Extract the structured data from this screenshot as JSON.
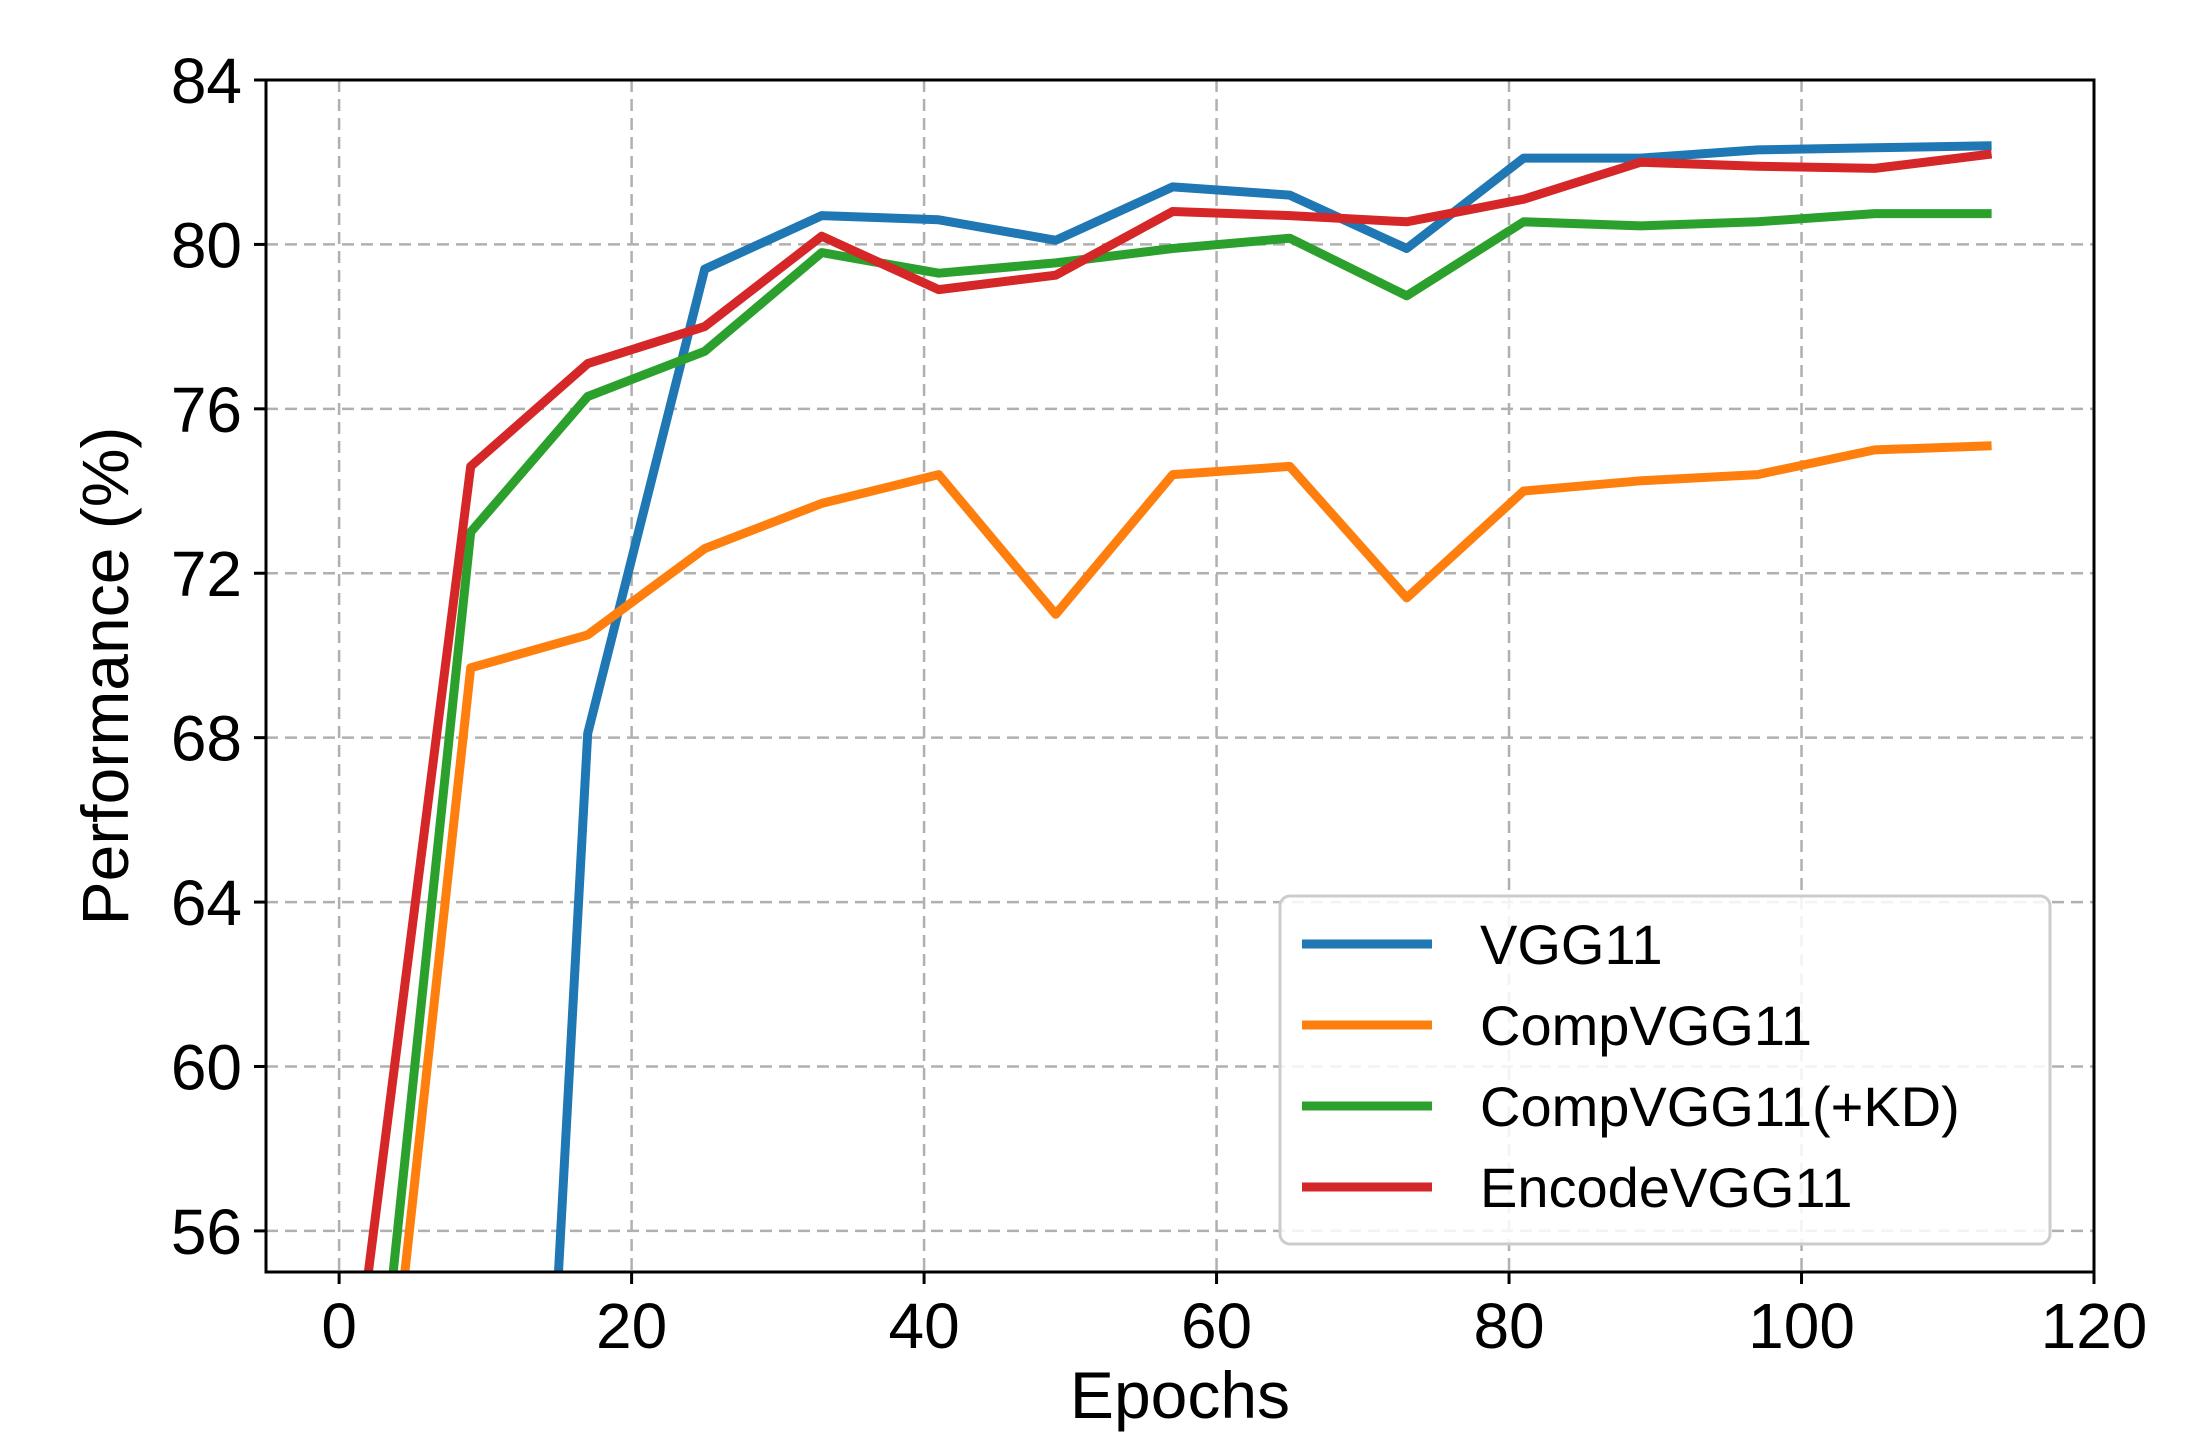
{
  "chart_data": {
    "type": "line",
    "xlabel": "Epochs",
    "ylabel": "Performance (%)",
    "xlim": [
      -5,
      120
    ],
    "ylim": [
      55,
      84
    ],
    "xticks": [
      0,
      20,
      40,
      60,
      80,
      100,
      120
    ],
    "yticks": [
      56,
      60,
      64,
      68,
      72,
      76,
      80,
      84
    ],
    "grid": true,
    "legend_position": "lower-right",
    "series": [
      {
        "name": "VGG11",
        "color": "#1f77b4",
        "x": [
          15,
          17,
          25,
          33,
          41,
          49,
          57,
          65,
          73,
          81,
          89,
          97,
          105,
          113
        ],
        "y": [
          55,
          68.1,
          79.4,
          80.7,
          80.6,
          80.1,
          81.4,
          81.2,
          79.9,
          82.1,
          82.1,
          82.3,
          82.35,
          82.4
        ]
      },
      {
        "name": "CompVGG11",
        "color": "#ff7f0e",
        "x": [
          4.5,
          9,
          17,
          25,
          33,
          41,
          49,
          57,
          65,
          73,
          81,
          89,
          97,
          105,
          113
        ],
        "y": [
          55,
          69.7,
          70.5,
          72.6,
          73.7,
          74.4,
          71.0,
          74.4,
          74.6,
          71.4,
          74.0,
          74.25,
          74.4,
          75.0,
          75.1
        ]
      },
      {
        "name": "CompVGG11(+KD)",
        "color": "#2ca02c",
        "x": [
          3.7,
          9,
          17,
          25,
          33,
          41,
          49,
          57,
          65,
          73,
          81,
          89,
          97,
          105,
          113
        ],
        "y": [
          55,
          73.0,
          76.3,
          77.4,
          79.8,
          79.3,
          79.55,
          79.9,
          80.15,
          78.75,
          80.55,
          80.45,
          80.55,
          80.75,
          80.75
        ]
      },
      {
        "name": "EncodeVGG11",
        "color": "#d62728",
        "x": [
          2,
          9,
          17,
          25,
          33,
          41,
          49,
          57,
          65,
          73,
          81,
          89,
          97,
          105,
          113
        ],
        "y": [
          55,
          74.6,
          77.1,
          78.0,
          80.2,
          78.9,
          79.25,
          80.8,
          80.7,
          80.55,
          81.1,
          82.0,
          81.9,
          81.85,
          82.2
        ]
      }
    ]
  }
}
